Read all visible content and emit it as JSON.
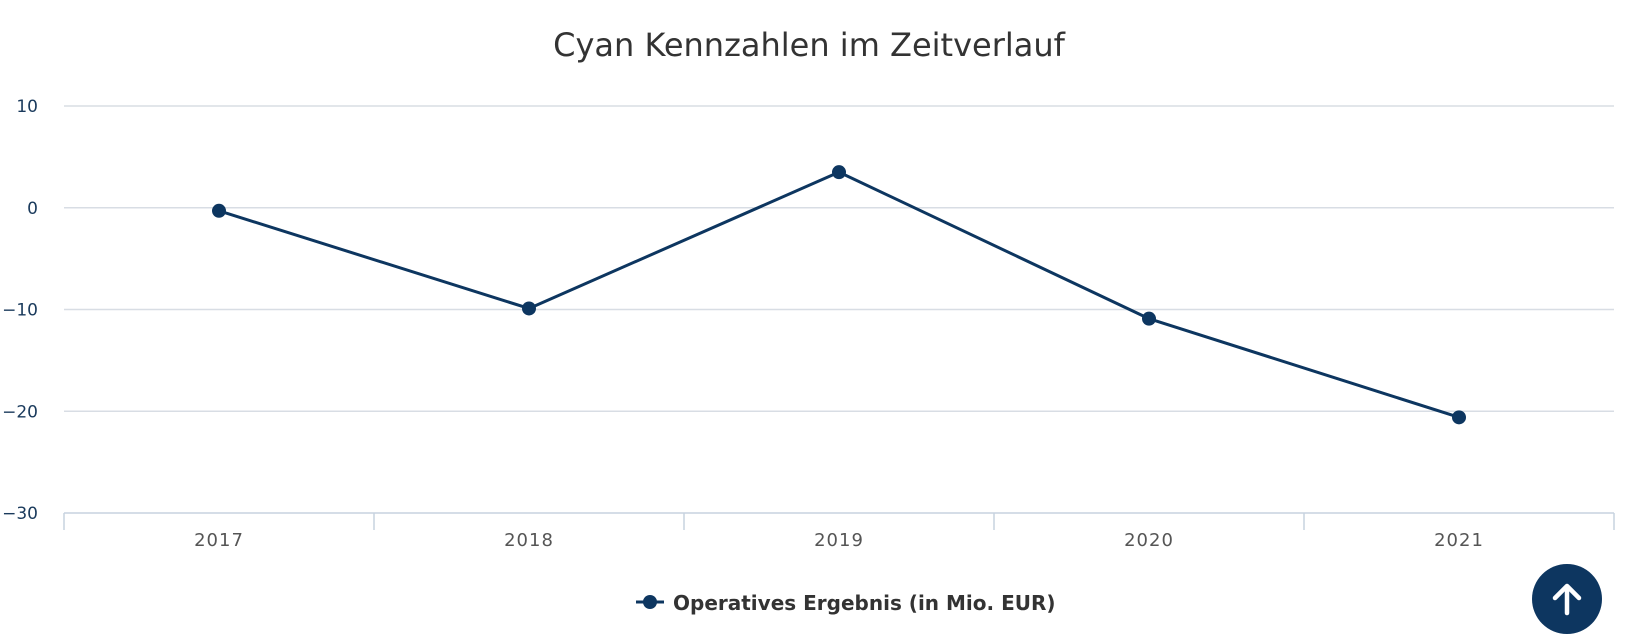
{
  "colors": {
    "series": "#0d3660",
    "scroll_button": "#0d3660",
    "scroll_icon": "#ffffff"
  },
  "scroll_top_button": {
    "icon": "arrow-up-icon"
  },
  "chart_data": {
    "type": "line",
    "title": "Cyan Kennzahlen im Zeitverlauf",
    "xlabel": "",
    "ylabel": "",
    "categories": [
      "2017",
      "2018",
      "2019",
      "2020",
      "2021"
    ],
    "ylim": [
      -30,
      10
    ],
    "yticks": [
      10,
      0,
      -10,
      -20,
      -30
    ],
    "ytick_labels": [
      "10",
      "0",
      "−10",
      "−20",
      "−30"
    ],
    "grid": true,
    "legend": "bottom-center",
    "series": [
      {
        "name": "Operatives Ergebnis (in Mio. EUR)",
        "values": [
          -0.3,
          -9.9,
          3.5,
          -10.9,
          -20.6
        ]
      }
    ]
  }
}
